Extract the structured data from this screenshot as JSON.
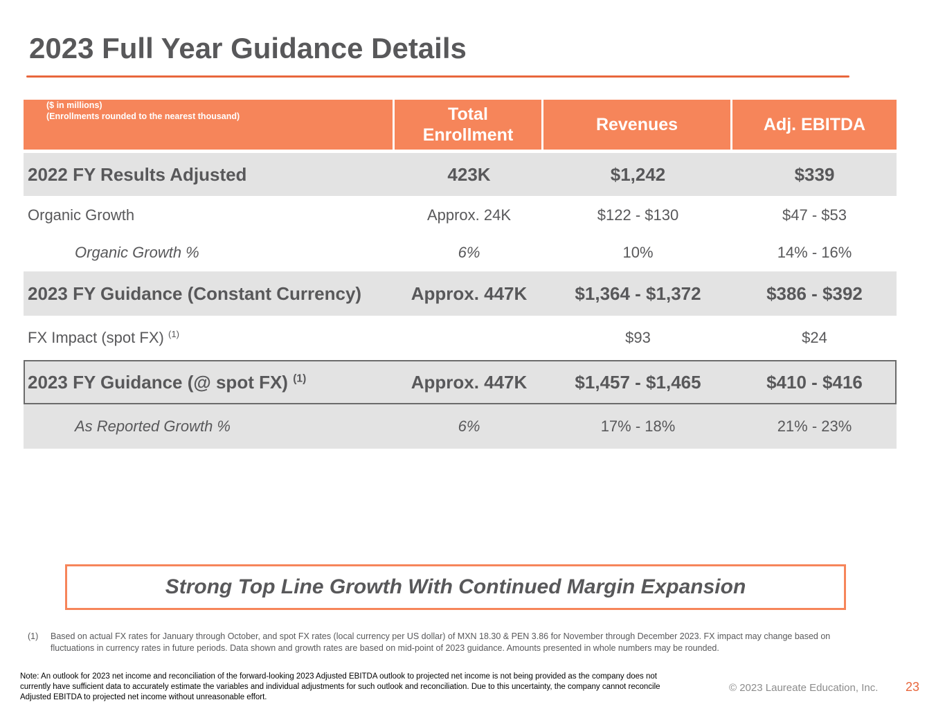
{
  "page_title": "2023 Full Year Guidance Details",
  "colors": {
    "accent": "#f6855a",
    "rule": "#e8663c",
    "shade": "#e3e3e3",
    "text": "#58585a"
  },
  "table": {
    "header_note_line1": "($ in millions)",
    "header_note_line2": "(Enrollments rounded to the nearest thousand)",
    "col_enrollment_line1": "Total",
    "col_enrollment_line2": "Enrollment",
    "col_revenues": "Revenues",
    "col_ebitda": "Adj. EBITDA",
    "rows": [
      {
        "label": "2022 FY Results Adjusted",
        "sup": "",
        "enrollment": "423K",
        "revenues": "$1,242",
        "ebitda": "$339"
      },
      {
        "label": "Organic Growth",
        "sup": "",
        "enrollment": "Approx. 24K",
        "revenues": "$122 - $130",
        "ebitda": "$47 - $53"
      },
      {
        "label": "Organic Growth %",
        "sup": "",
        "enrollment": "6%",
        "revenues": "10%",
        "ebitda": "14% - 16%"
      },
      {
        "label": "2023 FY Guidance (Constant Currency)",
        "sup": "",
        "enrollment": "Approx. 447K",
        "revenues": "$1,364 - $1,372",
        "ebitda": "$386 - $392"
      },
      {
        "label": "FX Impact (spot FX)",
        "sup": "(1)",
        "enrollment": "",
        "revenues": "$93",
        "ebitda": "$24"
      },
      {
        "label": "2023 FY Guidance (@ spot FX)",
        "sup": "(1)",
        "enrollment": "Approx. 447K",
        "revenues": "$1,457 - $1,465",
        "ebitda": "$410 - $416"
      },
      {
        "label": "As Reported Growth %",
        "sup": "",
        "enrollment": "6%",
        "revenues": "17% - 18%",
        "ebitda": "21% - 23%"
      }
    ]
  },
  "callout": "Strong Top Line Growth With Continued Margin Expansion",
  "footnote": {
    "mark": "(1)",
    "text": "Based on actual FX rates for January through October, and spot FX rates (local currency per US dollar) of MXN 18.30 & PEN 3.86 for November through December 2023. FX impact may change based on fluctuations in currency rates in future periods. Data shown and growth rates are based on mid-point of 2023 guidance.  Amounts presented in whole numbers may be rounded."
  },
  "note": "Note: An outlook for 2023 net income and reconciliation of the forward-looking 2023 Adjusted EBITDA outlook to projected net income is not being provided as the company does not currently have sufficient data to accurately estimate the variables and individual adjustments for such outlook and reconciliation.  Due to this uncertainty, the company cannot reconcile Adjusted EBITDA to projected net income without unreasonable effort.",
  "copyright": "© 2023 Laureate Education, Inc.",
  "page_number": "23"
}
